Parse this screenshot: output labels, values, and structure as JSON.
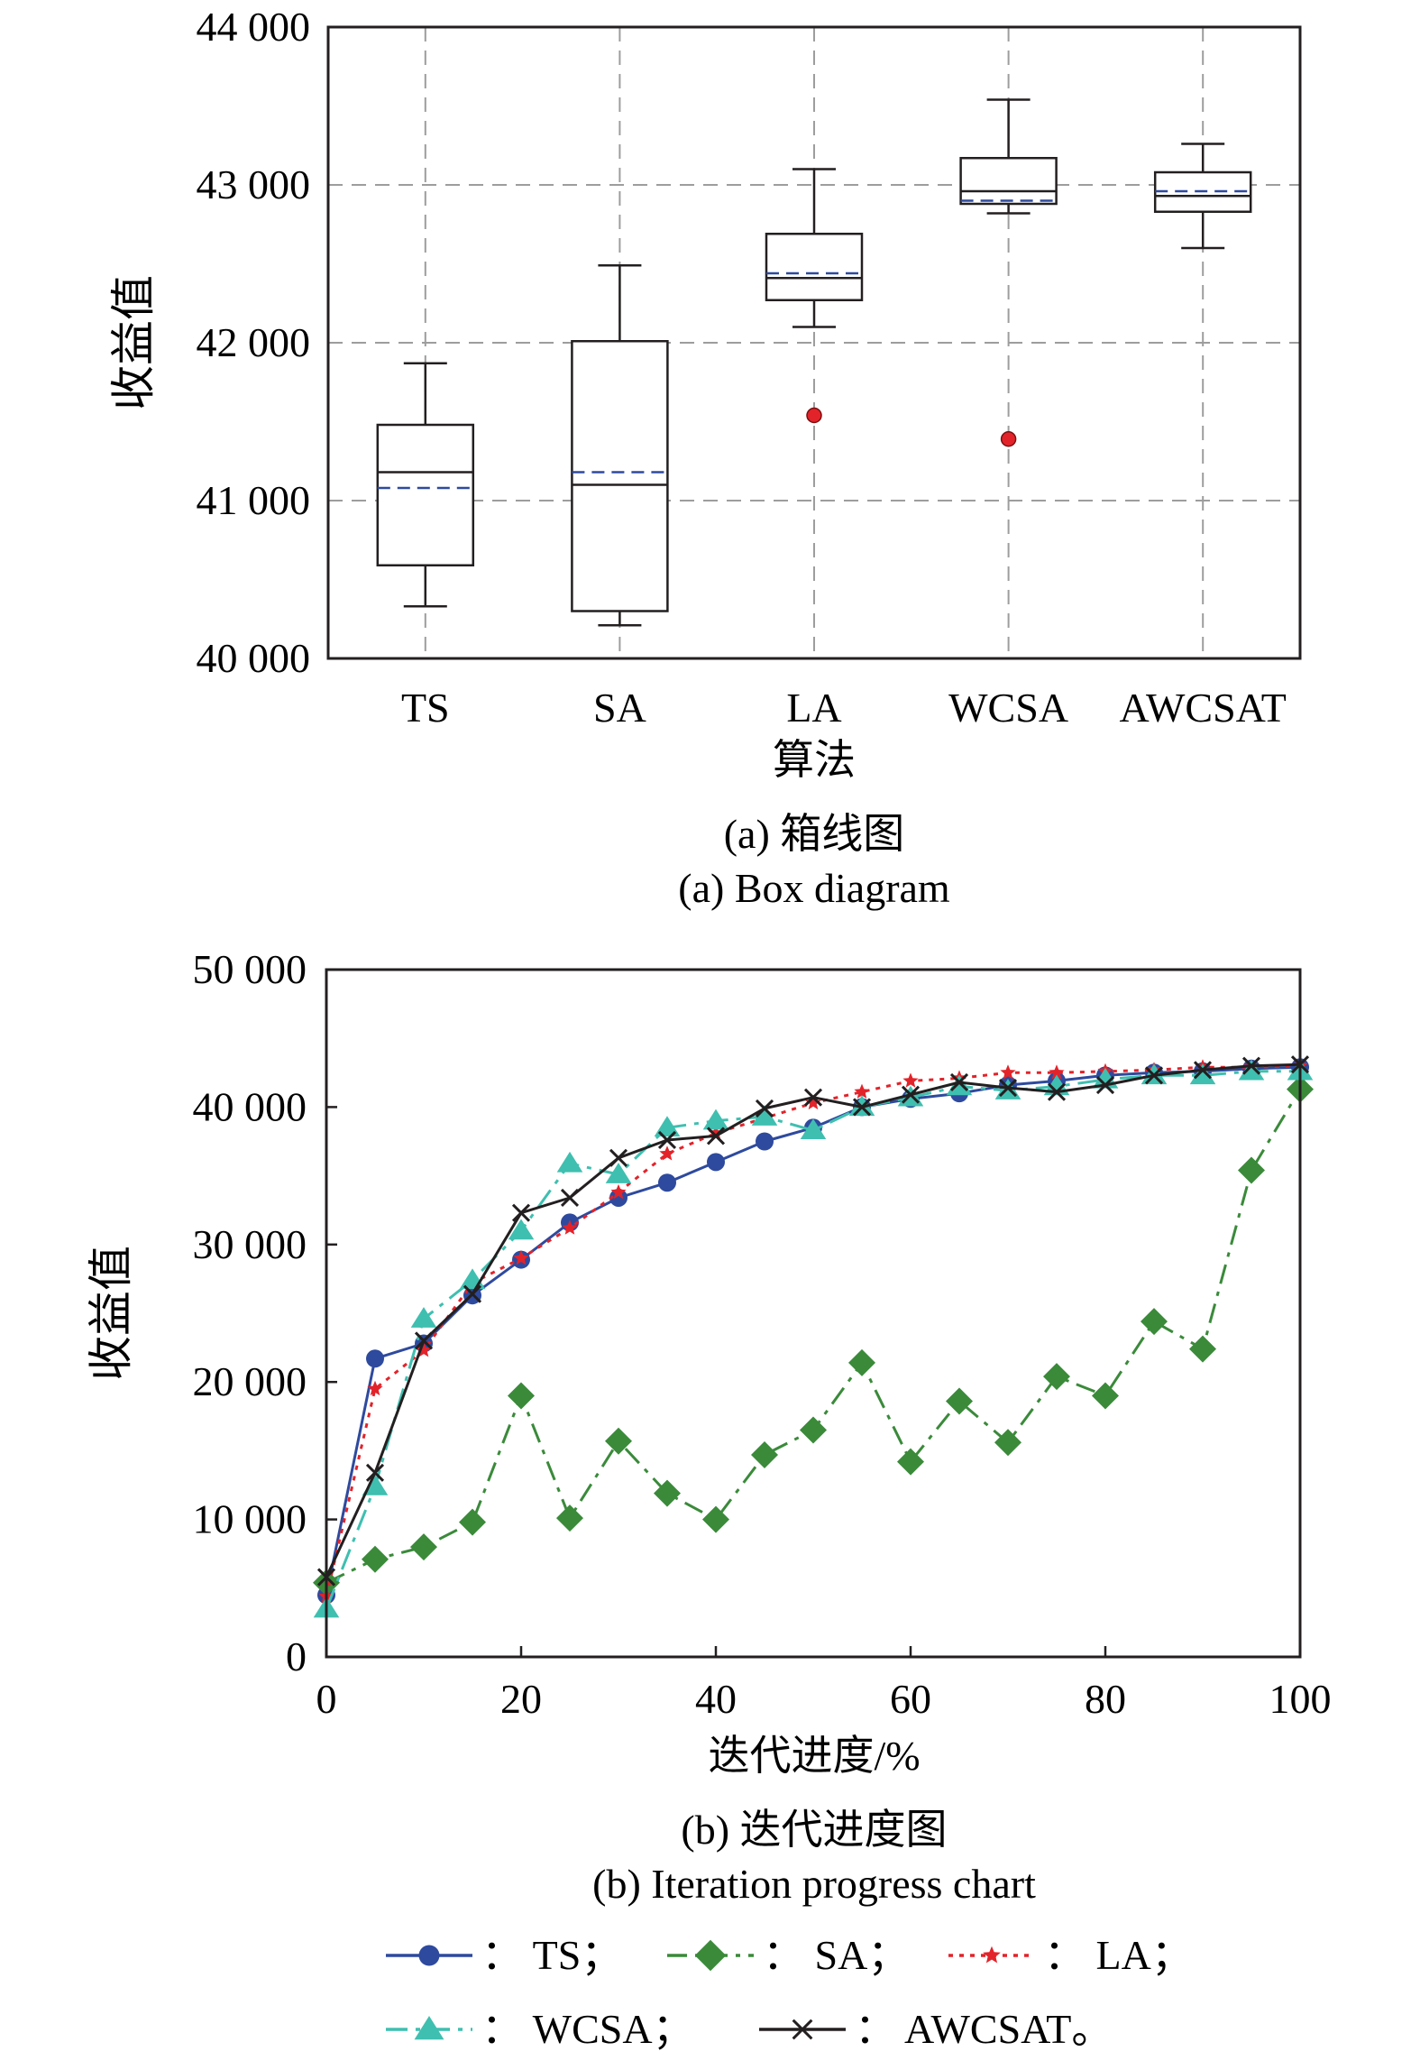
{
  "chart_data": [
    {
      "type": "box",
      "xlabel": "算法",
      "ylabel": "收益值",
      "caption_cn": "(a) 箱线图",
      "caption_en": "(a) Box diagram",
      "ylim": [
        40000,
        44000
      ],
      "yticks": [
        40000,
        41000,
        42000,
        43000,
        44000
      ],
      "ytick_labels": [
        "40 000",
        "41 000",
        "42 000",
        "43 000",
        "44 000"
      ],
      "grid": true,
      "categories": [
        "TS",
        "SA",
        "LA",
        "WCSA",
        "AWCSAT"
      ],
      "boxes": [
        {
          "name": "TS",
          "whisker_low": 40330,
          "q1": 40590,
          "median": 41180,
          "mean": 41080,
          "q3": 41480,
          "whisker_high": 41870,
          "outliers": []
        },
        {
          "name": "SA",
          "whisker_low": 40210,
          "q1": 40300,
          "median": 41100,
          "mean": 41180,
          "q3": 42010,
          "whisker_high": 42490,
          "outliers": []
        },
        {
          "name": "LA",
          "whisker_low": 42100,
          "q1": 42270,
          "median": 42410,
          "mean": 42440,
          "q3": 42690,
          "whisker_high": 43100,
          "outliers": [
            41540
          ]
        },
        {
          "name": "WCSA",
          "whisker_low": 42820,
          "q1": 42880,
          "median": 42960,
          "mean": 42900,
          "q3": 43170,
          "whisker_high": 43540,
          "outliers": [
            41390
          ]
        },
        {
          "name": "AWCSAT",
          "whisker_low": 42600,
          "q1": 42830,
          "median": 42930,
          "mean": 42960,
          "q3": 43080,
          "whisker_high": 43260,
          "outliers": []
        }
      ],
      "colors": {
        "box": "#231f20",
        "mean": "#2e4a9e",
        "outlier": "#e3232a",
        "grid": "#9d9d9d"
      }
    },
    {
      "type": "line",
      "xlabel": "迭代进度/%",
      "ylabel": "收益值",
      "caption_cn": "(b) 迭代进度图",
      "caption_en": "(b) Iteration progress chart",
      "xlim": [
        0,
        100
      ],
      "ylim": [
        0,
        50000
      ],
      "xticks": [
        0,
        20,
        40,
        60,
        80,
        100
      ],
      "xtick_labels": [
        "0",
        "20",
        "40",
        "60",
        "80",
        "100"
      ],
      "yticks": [
        0,
        10000,
        20000,
        30000,
        40000,
        50000
      ],
      "ytick_labels": [
        "0",
        "10 000",
        "20 000",
        "30 000",
        "40 000",
        "50 000"
      ],
      "grid": false,
      "x": [
        0,
        5,
        10,
        15,
        20,
        25,
        30,
        35,
        40,
        45,
        50,
        55,
        60,
        65,
        70,
        75,
        80,
        85,
        90,
        95,
        100
      ],
      "series": [
        {
          "name": "TS",
          "color": "#2e4a9e",
          "marker": "circle",
          "dash": "",
          "values": [
            4500,
            21700,
            22800,
            26300,
            28900,
            31600,
            33400,
            34500,
            36000,
            37500,
            38500,
            40000,
            40600,
            41000,
            41600,
            41900,
            42300,
            42500,
            42600,
            42800,
            42900
          ]
        },
        {
          "name": "SA",
          "color": "#3a8a3a",
          "marker": "diamond",
          "dash": "22,9,5,9",
          "values": [
            5400,
            7100,
            8000,
            9800,
            19000,
            10100,
            15700,
            11900,
            10000,
            14700,
            16500,
            21400,
            14200,
            18600,
            15600,
            20400,
            19000,
            24400,
            22400,
            35400,
            41300
          ]
        },
        {
          "name": "LA",
          "color": "#e3232a",
          "marker": "star",
          "dash": "5,7",
          "values": [
            4400,
            19500,
            22300,
            27200,
            29000,
            31200,
            33800,
            36600,
            38100,
            39200,
            40300,
            41100,
            41900,
            42100,
            42500,
            42500,
            42600,
            42700,
            42900,
            42900,
            43000
          ]
        },
        {
          "name": "WCSA",
          "color": "#3fbfb0",
          "marker": "triangle",
          "dash": "24,9,5,9",
          "values": [
            3500,
            12400,
            24600,
            27400,
            31000,
            35900,
            35100,
            38500,
            39000,
            39300,
            38300,
            40000,
            40700,
            41500,
            41200,
            41500,
            42000,
            42300,
            42300,
            42600,
            42600
          ]
        },
        {
          "name": "AWCSAT",
          "color": "#231f20",
          "marker": "x",
          "dash": "",
          "values": [
            5800,
            13400,
            23000,
            26400,
            32300,
            33400,
            36300,
            37600,
            37900,
            39900,
            40700,
            40000,
            40900,
            41800,
            41400,
            41100,
            41600,
            42300,
            42700,
            43000,
            43100
          ]
        }
      ],
      "legend_labels": [
        "：  TS；",
        "：  SA；",
        "：  LA；",
        "：  WCSA；",
        "：  AWCSAT。"
      ],
      "legend_placement": "bottom"
    }
  ]
}
